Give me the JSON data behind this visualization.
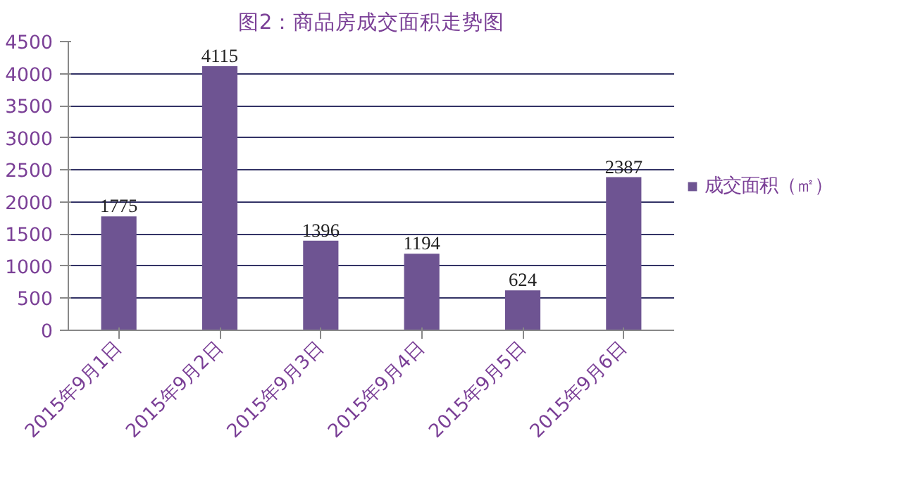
{
  "chart_data": {
    "type": "bar",
    "title": "图2：商品房成交面积走势图",
    "categories": [
      "2015年9月1日",
      "2015年9月2日",
      "2015年9月3日",
      "2015年9月4日",
      "2015年9月5日",
      "2015年9月6日"
    ],
    "series": [
      {
        "name": "成交面积（㎡）",
        "color": "#6e5492",
        "values": [
          1775,
          4115,
          1396,
          1194,
          624,
          2387
        ]
      }
    ],
    "ylim": [
      0,
      4500
    ],
    "yticks": [
      0,
      500,
      1000,
      1500,
      2000,
      2500,
      3000,
      3500,
      4000,
      4500
    ],
    "grid": "y",
    "legend": "right",
    "data_labels": true
  }
}
